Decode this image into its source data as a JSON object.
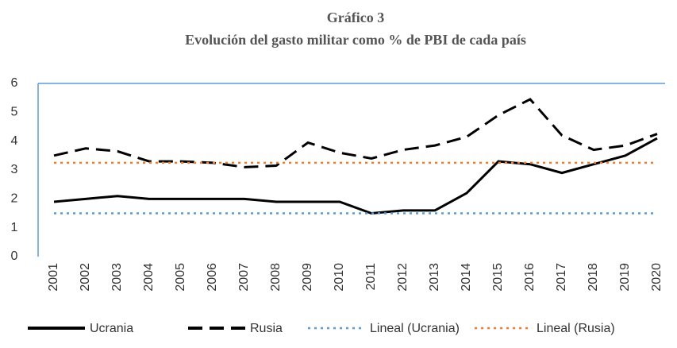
{
  "chart_data": {
    "type": "line",
    "title": "Gráfico 3",
    "subtitle": "Evolución del gasto militar como % de PBI de cada país",
    "categories": [
      "2001",
      "2002",
      "2003",
      "2004",
      "2005",
      "2006",
      "2007",
      "2008",
      "2009",
      "2010",
      "2011",
      "2012",
      "2013",
      "2014",
      "2015",
      "2016",
      "2017",
      "2018",
      "2019",
      "2020"
    ],
    "series": [
      {
        "name": "Ucrania",
        "color": "#000000",
        "style": "solid",
        "values": [
          1.9,
          2.0,
          2.1,
          2.0,
          2.0,
          2.0,
          2.0,
          1.9,
          1.9,
          1.9,
          1.5,
          1.6,
          1.6,
          2.2,
          3.3,
          3.2,
          2.9,
          3.2,
          3.5,
          4.1
        ]
      },
      {
        "name": "Rusia",
        "color": "#000000",
        "style": "dashed",
        "values": [
          3.5,
          3.75,
          3.65,
          3.3,
          3.3,
          3.25,
          3.1,
          3.15,
          3.95,
          3.6,
          3.4,
          3.7,
          3.85,
          4.15,
          4.9,
          5.45,
          4.2,
          3.7,
          3.85,
          4.25
        ]
      },
      {
        "name": "Lineal (Ucrania)",
        "color": "#5b9bd5",
        "style": "dotted",
        "values": [
          1.5,
          1.5,
          1.5,
          1.5,
          1.5,
          1.5,
          1.5,
          1.5,
          1.5,
          1.5,
          1.5,
          1.5,
          1.5,
          1.5,
          1.5,
          1.5,
          1.5,
          1.5,
          1.5,
          1.5
        ]
      },
      {
        "name": "Lineal (Rusia)",
        "color": "#ed7d31",
        "style": "dotted",
        "values": [
          3.25,
          3.25,
          3.25,
          3.25,
          3.25,
          3.25,
          3.25,
          3.25,
          3.25,
          3.25,
          3.25,
          3.25,
          3.25,
          3.25,
          3.25,
          3.25,
          3.25,
          3.25,
          3.25,
          3.25
        ]
      }
    ],
    "ylim": [
      0,
      6
    ],
    "yticks": [
      0,
      1,
      2,
      3,
      4,
      5,
      6
    ],
    "legend": "bottom"
  }
}
